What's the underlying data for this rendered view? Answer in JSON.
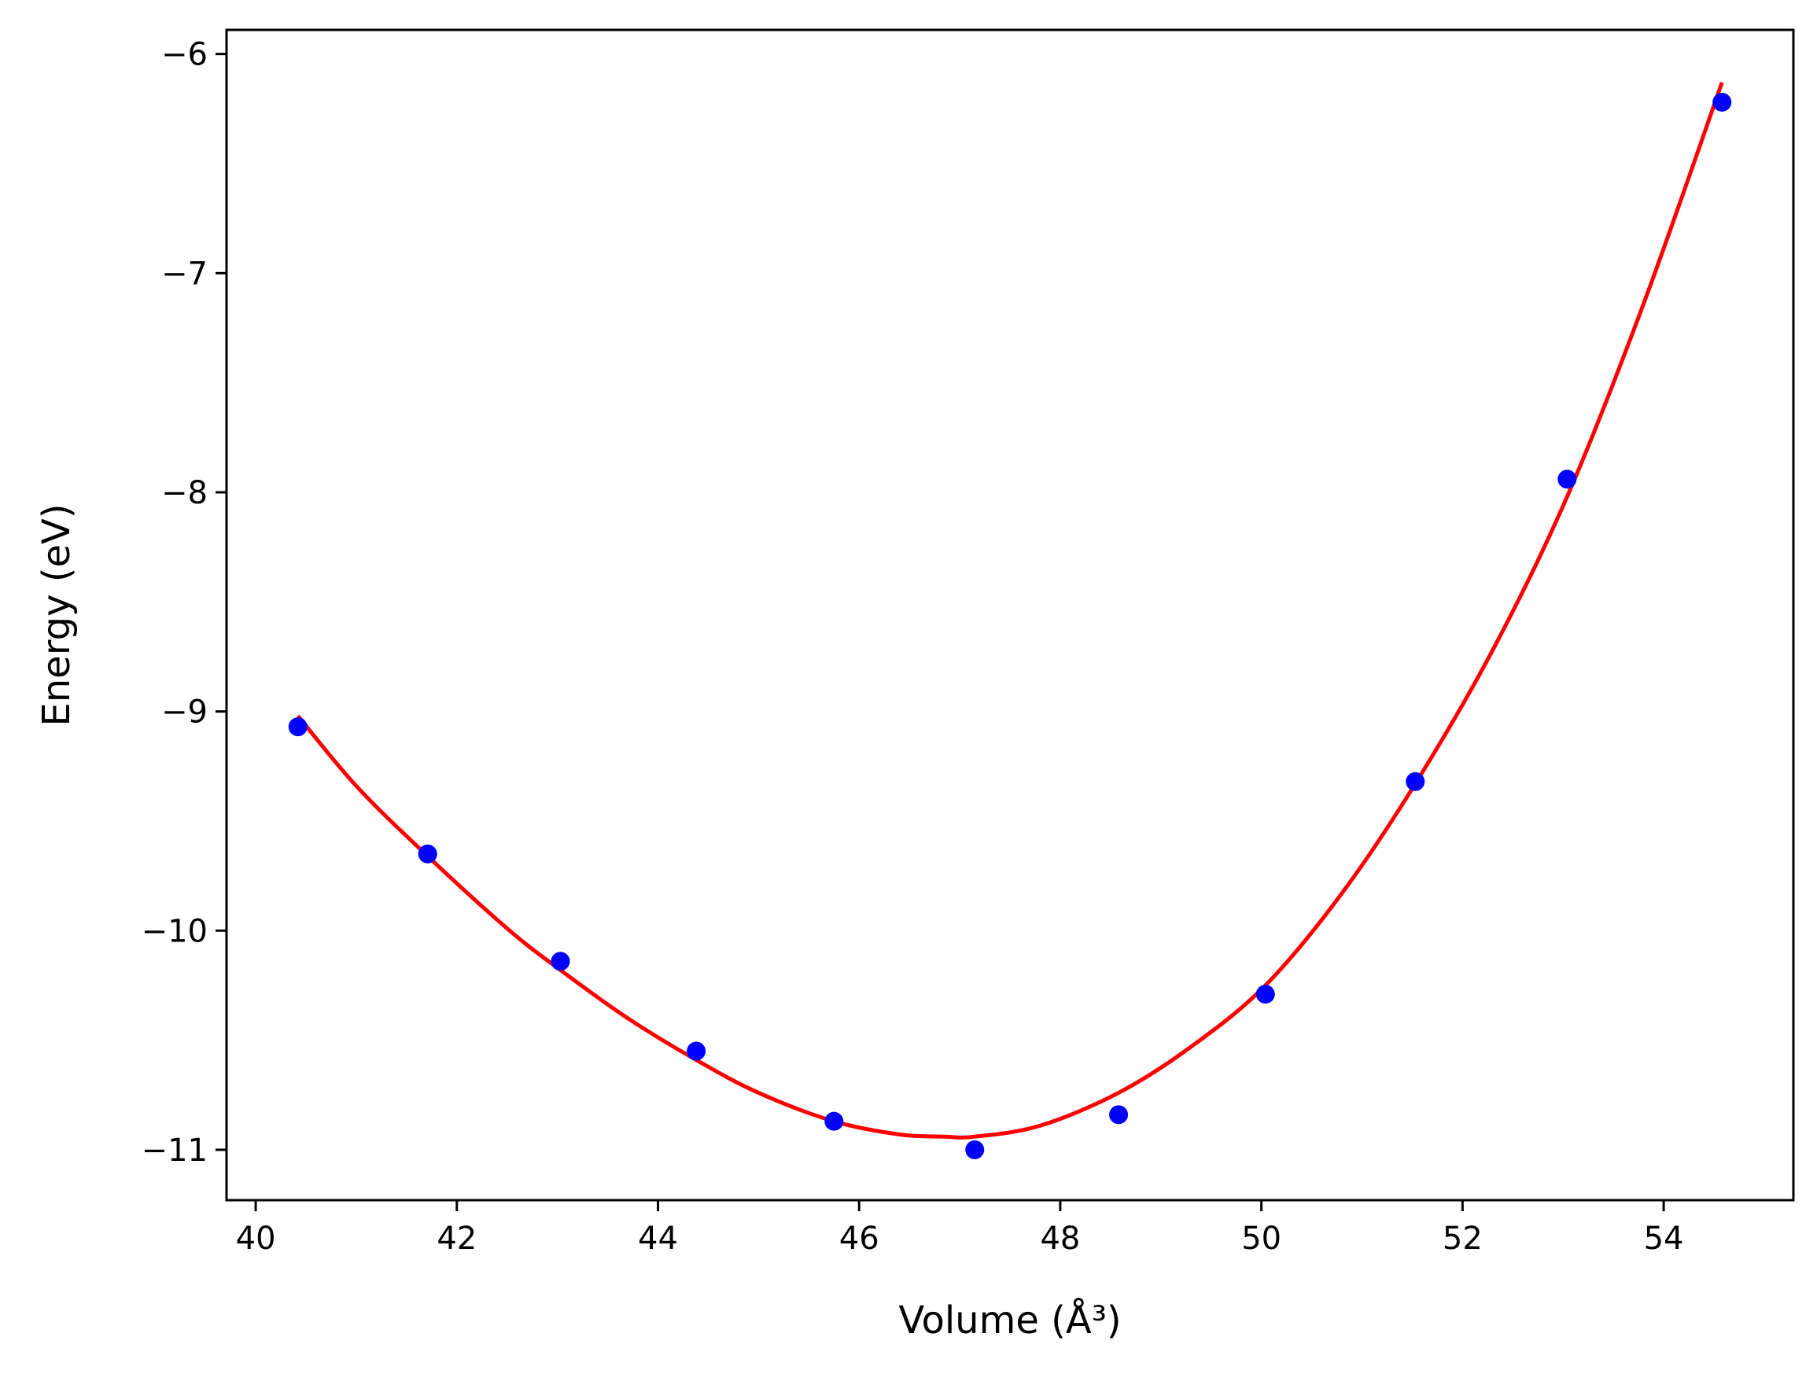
{
  "chart_data": {
    "type": "scatter",
    "title": "",
    "xlabel": "Volume (Å³)",
    "ylabel": "Energy (eV)",
    "xlim": [
      39.71,
      55.29
    ],
    "ylim": [
      -11.23,
      -5.89
    ],
    "xticks": [
      {
        "value": 40,
        "label": "40"
      },
      {
        "value": 42,
        "label": "42"
      },
      {
        "value": 44,
        "label": "44"
      },
      {
        "value": 46,
        "label": "46"
      },
      {
        "value": 48,
        "label": "48"
      },
      {
        "value": 50,
        "label": "50"
      },
      {
        "value": 52,
        "label": "52"
      },
      {
        "value": 54,
        "label": "54"
      }
    ],
    "yticks": [
      {
        "value": -6,
        "label": "−6"
      },
      {
        "value": -7,
        "label": "−7"
      },
      {
        "value": -8,
        "label": "−8"
      },
      {
        "value": -9,
        "label": "−9"
      },
      {
        "value": -10,
        "label": "−10"
      },
      {
        "value": -11,
        "label": "−11"
      }
    ],
    "grid": false,
    "series": [
      {
        "kind": "points",
        "color": "#0000ff",
        "points": [
          {
            "x": 40.42,
            "y": -9.07
          },
          {
            "x": 41.71,
            "y": -9.65
          },
          {
            "x": 43.03,
            "y": -10.14
          },
          {
            "x": 44.38,
            "y": -10.55
          },
          {
            "x": 45.75,
            "y": -10.87
          },
          {
            "x": 47.15,
            "y": -11.0
          },
          {
            "x": 48.58,
            "y": -10.84
          },
          {
            "x": 50.04,
            "y": -10.29
          },
          {
            "x": 51.53,
            "y": -9.32
          },
          {
            "x": 53.04,
            "y": -7.94
          },
          {
            "x": 54.58,
            "y": -6.22
          }
        ]
      },
      {
        "kind": "fit",
        "color": "#ff0000",
        "points": [
          {
            "x": 40.42,
            "y": -9.02
          },
          {
            "x": 41.0,
            "y": -9.34
          },
          {
            "x": 41.71,
            "y": -9.66
          },
          {
            "x": 42.5,
            "y": -9.99
          },
          {
            "x": 43.03,
            "y": -10.18
          },
          {
            "x": 43.7,
            "y": -10.4
          },
          {
            "x": 44.38,
            "y": -10.59
          },
          {
            "x": 45.0,
            "y": -10.74
          },
          {
            "x": 45.75,
            "y": -10.87
          },
          {
            "x": 46.4,
            "y": -10.93
          },
          {
            "x": 46.85,
            "y": -10.94
          },
          {
            "x": 47.15,
            "y": -10.94
          },
          {
            "x": 47.8,
            "y": -10.89
          },
          {
            "x": 48.58,
            "y": -10.74
          },
          {
            "x": 49.3,
            "y": -10.53
          },
          {
            "x": 50.04,
            "y": -10.25
          },
          {
            "x": 50.8,
            "y": -9.83
          },
          {
            "x": 51.53,
            "y": -9.33
          },
          {
            "x": 52.3,
            "y": -8.72
          },
          {
            "x": 53.04,
            "y": -8.02
          },
          {
            "x": 53.8,
            "y": -7.14
          },
          {
            "x": 54.58,
            "y": -6.13
          }
        ]
      }
    ]
  }
}
